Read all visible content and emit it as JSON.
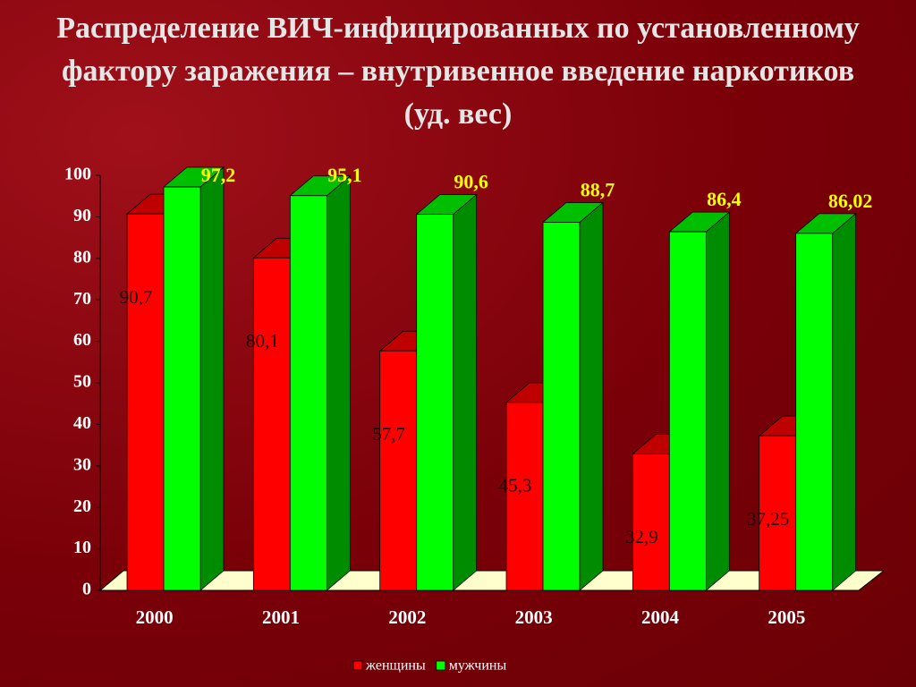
{
  "chart_data": {
    "type": "bar3d",
    "title": "Распределение ВИЧ-инфицированных по установленному фактору заражения – внутривенное введение наркотиков (уд. вес)",
    "categories": [
      "2000",
      "2001",
      "2002",
      "2003",
      "2004",
      "2005"
    ],
    "series": [
      {
        "name": "женщины",
        "color": "#ff0000",
        "values": [
          90.7,
          80.1,
          57.7,
          45.3,
          32.9,
          37.25
        ],
        "value_labels": [
          "90,7",
          "80,1",
          "57,7",
          "45,3",
          "32,9",
          "37,25"
        ]
      },
      {
        "name": "мужчины",
        "color": "#00ff00",
        "values": [
          97.2,
          95.1,
          90.6,
          88.7,
          86.4,
          86.02
        ],
        "value_labels": [
          "97,2",
          "95,1",
          "90,6",
          "88,7",
          "86,4",
          "86,02"
        ]
      }
    ],
    "ylim": [
      0,
      100
    ],
    "yticks": [
      0,
      10,
      20,
      30,
      40,
      50,
      60,
      70,
      80,
      90,
      100
    ],
    "legend": "bottom"
  }
}
